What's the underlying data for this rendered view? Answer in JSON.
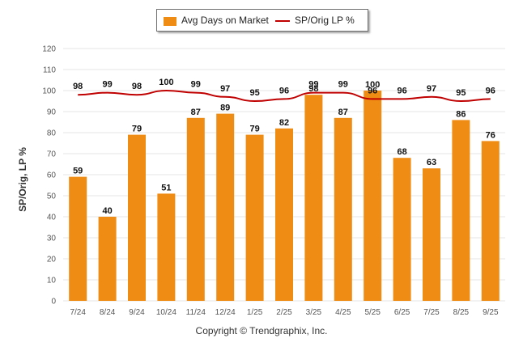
{
  "chart_data": {
    "type": "bar",
    "categories": [
      "7/24",
      "8/24",
      "9/24",
      "10/24",
      "11/24",
      "12/24",
      "1/25",
      "2/25",
      "3/25",
      "4/25",
      "5/25",
      "6/25",
      "7/25",
      "8/25",
      "9/25"
    ],
    "series": [
      {
        "name": "Avg Days on Market",
        "type": "bar",
        "values": [
          59,
          40,
          79,
          51,
          87,
          89,
          79,
          82,
          98,
          87,
          100,
          68,
          63,
          86,
          76
        ]
      },
      {
        "name": "SP/Orig LP %",
        "type": "line",
        "values": [
          98,
          99,
          98,
          100,
          99,
          97,
          95,
          96,
          99,
          99,
          96,
          96,
          97,
          95,
          96
        ]
      }
    ],
    "ylabel": "SP/Orig, LP %",
    "xlabel": "",
    "ylim": [
      0,
      120
    ],
    "yticks": [
      0,
      10,
      20,
      30,
      40,
      50,
      60,
      70,
      80,
      90,
      100,
      110,
      120
    ],
    "grid": true,
    "legend": "top-center"
  },
  "colors": {
    "bar": "#ef8c14",
    "line": "#c00000",
    "grid": "#e6e6e6"
  },
  "copyright": "Copyright © Trendgraphix, Inc."
}
